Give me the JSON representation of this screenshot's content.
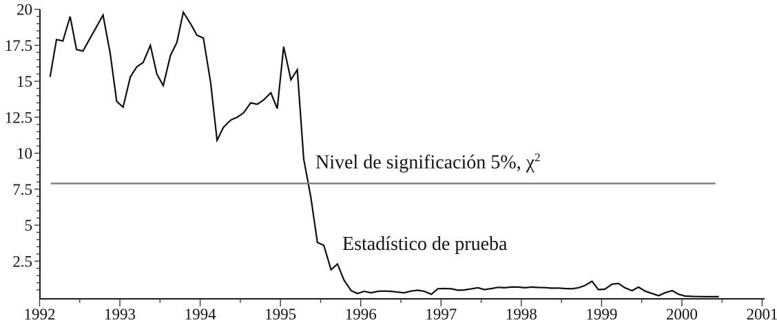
{
  "page": {
    "background": "#ffffff"
  },
  "chart_data": {
    "type": "line",
    "title": "",
    "xlabel": "",
    "ylabel": "",
    "grid": false,
    "legend": "none (labels drawn as in-plot annotations)",
    "x_axis": {
      "min": 1992,
      "max": 2001,
      "major_tick_interval": 1,
      "minor_tick_interval": 0.5,
      "tick_labels": [
        "1992",
        "1993",
        "1994",
        "1995",
        "1996",
        "1997",
        "1998",
        "1999",
        "2000",
        "2001"
      ]
    },
    "y_axis": {
      "min": 0,
      "max": 20,
      "major_tick_interval": 2.5,
      "minor_tick_interval": 0.5,
      "tick_labels": [
        "2.5",
        "5",
        "7.5",
        "10",
        "12.5",
        "15",
        "17.5",
        "20"
      ]
    },
    "colors": {
      "series_line": "#0d0d0d",
      "reference_line": "#7b7b7b",
      "axis": "#1a1a1a",
      "tick": "#3a3a3a",
      "label_text": "#141414"
    },
    "series": [
      {
        "name": "Estadístico de prueba",
        "type": "line",
        "color": "#0d0d0d",
        "points": [
          [
            1992.13,
            15.3
          ],
          [
            1992.21,
            17.9
          ],
          [
            1992.29,
            17.8
          ],
          [
            1992.38,
            19.5
          ],
          [
            1992.46,
            17.2
          ],
          [
            1992.54,
            17.1
          ],
          [
            1992.63,
            18.0
          ],
          [
            1992.71,
            18.8
          ],
          [
            1992.79,
            19.6
          ],
          [
            1992.88,
            16.9
          ],
          [
            1992.96,
            13.6
          ],
          [
            1993.04,
            13.2
          ],
          [
            1993.13,
            15.3
          ],
          [
            1993.21,
            16.0
          ],
          [
            1993.29,
            16.3
          ],
          [
            1993.38,
            17.5
          ],
          [
            1993.46,
            15.5
          ],
          [
            1993.54,
            14.7
          ],
          [
            1993.63,
            16.8
          ],
          [
            1993.71,
            17.7
          ],
          [
            1993.79,
            19.8
          ],
          [
            1993.88,
            19.0
          ],
          [
            1993.96,
            18.2
          ],
          [
            1994.04,
            18.0
          ],
          [
            1994.13,
            14.9
          ],
          [
            1994.21,
            10.9
          ],
          [
            1994.29,
            11.8
          ],
          [
            1994.38,
            12.3
          ],
          [
            1994.46,
            12.5
          ],
          [
            1994.54,
            12.8
          ],
          [
            1994.63,
            13.5
          ],
          [
            1994.71,
            13.4
          ],
          [
            1994.79,
            13.7
          ],
          [
            1994.88,
            14.2
          ],
          [
            1994.96,
            13.1
          ],
          [
            1995.04,
            17.4
          ],
          [
            1995.13,
            15.1
          ],
          [
            1995.21,
            15.8
          ],
          [
            1995.29,
            9.6
          ],
          [
            1995.38,
            6.9
          ],
          [
            1995.46,
            3.8
          ],
          [
            1995.54,
            3.6
          ],
          [
            1995.63,
            1.9
          ],
          [
            1995.71,
            2.3
          ],
          [
            1995.79,
            1.2
          ],
          [
            1995.88,
            0.45
          ],
          [
            1995.96,
            0.25
          ],
          [
            1996.04,
            0.4
          ],
          [
            1996.13,
            0.3
          ],
          [
            1996.21,
            0.4
          ],
          [
            1996.29,
            0.42
          ],
          [
            1996.38,
            0.4
          ],
          [
            1996.46,
            0.35
          ],
          [
            1996.54,
            0.3
          ],
          [
            1996.63,
            0.42
          ],
          [
            1996.71,
            0.48
          ],
          [
            1996.79,
            0.4
          ],
          [
            1996.88,
            0.2
          ],
          [
            1996.96,
            0.58
          ],
          [
            1997.04,
            0.6
          ],
          [
            1997.13,
            0.58
          ],
          [
            1997.21,
            0.48
          ],
          [
            1997.29,
            0.5
          ],
          [
            1997.38,
            0.58
          ],
          [
            1997.46,
            0.65
          ],
          [
            1997.54,
            0.52
          ],
          [
            1997.63,
            0.6
          ],
          [
            1997.71,
            0.68
          ],
          [
            1997.79,
            0.65
          ],
          [
            1997.88,
            0.7
          ],
          [
            1997.96,
            0.7
          ],
          [
            1998.04,
            0.65
          ],
          [
            1998.13,
            0.7
          ],
          [
            1998.21,
            0.67
          ],
          [
            1998.29,
            0.66
          ],
          [
            1998.38,
            0.62
          ],
          [
            1998.46,
            0.63
          ],
          [
            1998.54,
            0.6
          ],
          [
            1998.63,
            0.58
          ],
          [
            1998.71,
            0.65
          ],
          [
            1998.79,
            0.8
          ],
          [
            1998.88,
            1.1
          ],
          [
            1998.96,
            0.52
          ],
          [
            1999.04,
            0.55
          ],
          [
            1999.13,
            0.9
          ],
          [
            1999.21,
            0.95
          ],
          [
            1999.29,
            0.65
          ],
          [
            1999.38,
            0.45
          ],
          [
            1999.46,
            0.7
          ],
          [
            1999.54,
            0.42
          ],
          [
            1999.63,
            0.25
          ],
          [
            1999.71,
            0.1
          ],
          [
            1999.79,
            0.3
          ],
          [
            1999.88,
            0.45
          ],
          [
            1999.96,
            0.2
          ],
          [
            2000.04,
            0.07
          ],
          [
            2000.13,
            0.05
          ],
          [
            2000.21,
            0.04
          ],
          [
            2000.29,
            0.03
          ],
          [
            2000.38,
            0.03
          ],
          [
            2000.46,
            0.03
          ]
        ]
      },
      {
        "name": "Nivel de significación 5%, χ2",
        "type": "reference-line",
        "value": 7.9,
        "color": "#7b7b7b",
        "x_start": 1992.14,
        "x_end": 2000.42
      }
    ],
    "annotations": {
      "significance": {
        "text": "Nivel de significación 5%, ",
        "chi": "χ",
        "sup": "2"
      },
      "statistic": {
        "text": "Estadístico de prueba"
      }
    }
  }
}
